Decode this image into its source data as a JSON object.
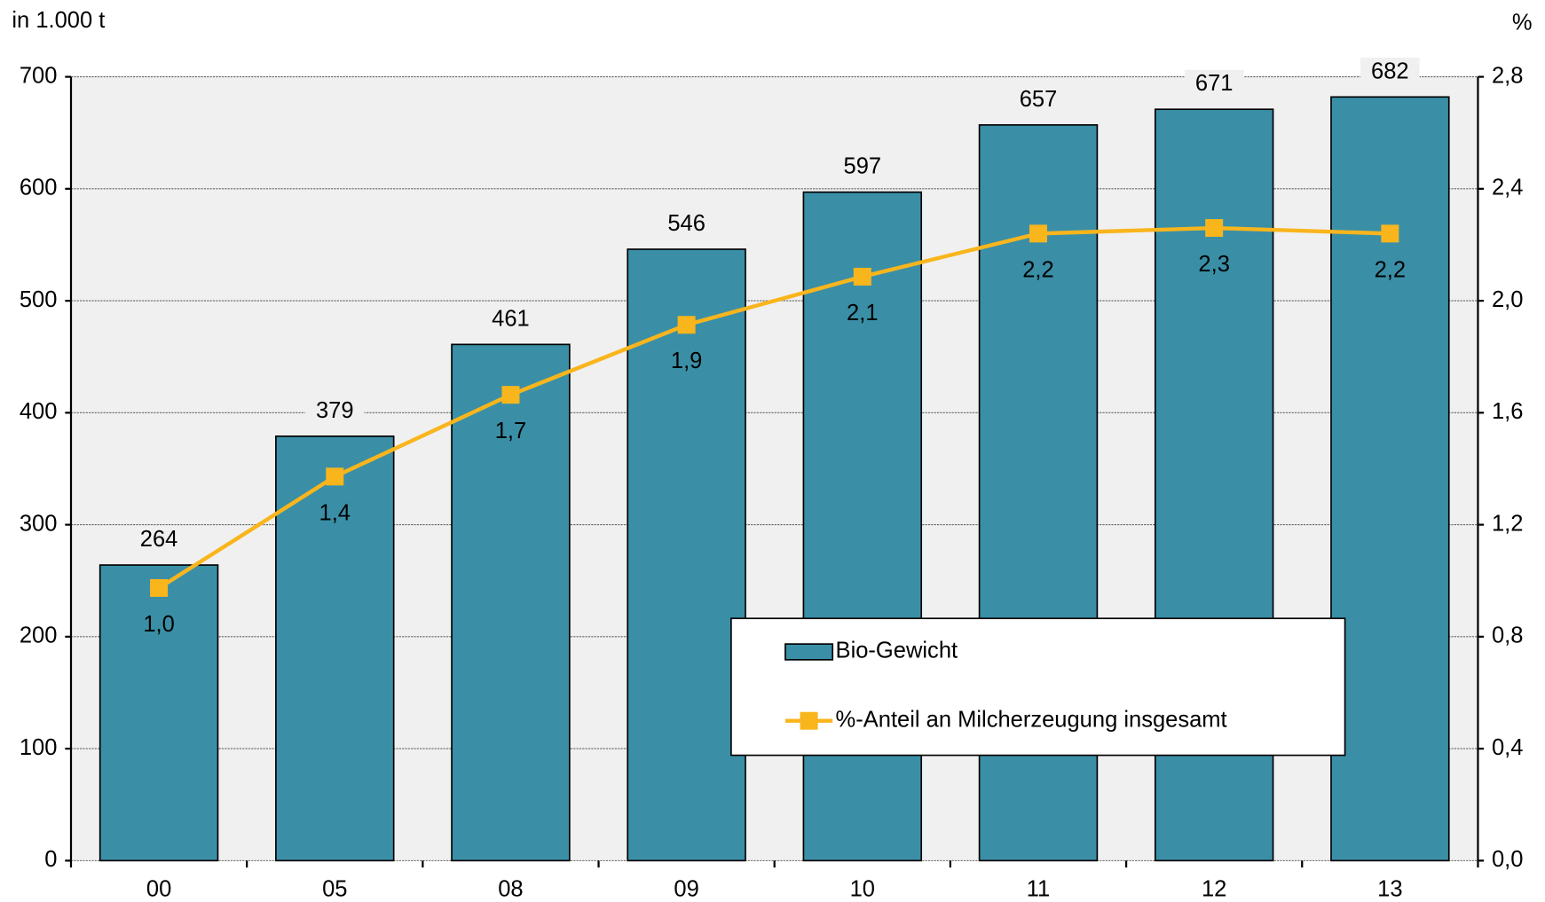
{
  "chart_data": {
    "type": "bar_line",
    "y_label": "in 1.000 t",
    "y2_label": "%",
    "categories": [
      "00",
      "05",
      "08",
      "09",
      "10",
      "11",
      "12",
      "13"
    ],
    "series": [
      {
        "name": "Bio-Gewicht",
        "type": "bar",
        "color": "#3a8fa6",
        "values": [
          264,
          379,
          461,
          546,
          597,
          657,
          671,
          682
        ]
      },
      {
        "name": "%-Anteil an Milcherzeugung insgesamt",
        "type": "line",
        "axis": "y2",
        "color": "#f9b51c",
        "values": [
          0.974,
          1.372,
          1.664,
          1.914,
          2.086,
          2.24,
          2.26,
          2.24
        ],
        "value_labels": [
          "1,0",
          "1,4",
          "1,7",
          "1,9",
          "2,1",
          "2,2",
          "2,3",
          "2,2"
        ]
      }
    ],
    "ylim": [
      0,
      700
    ],
    "yticks": [
      0,
      100,
      200,
      300,
      400,
      500,
      600,
      700
    ],
    "y2lim": [
      0,
      2.8
    ],
    "y2ticks": [
      {
        "value": 0,
        "label": "0,0"
      },
      {
        "value": 0.4,
        "label": "0,4"
      },
      {
        "value": 0.8,
        "label": "0,8"
      },
      {
        "value": 1.2,
        "label": "1,2"
      },
      {
        "value": 1.6,
        "label": "1,6"
      },
      {
        "value": 2.0,
        "label": "2,0"
      },
      {
        "value": 2.4,
        "label": "2,4"
      },
      {
        "value": 2.8,
        "label": "2,8"
      }
    ],
    "grid": true,
    "legend": "lower right"
  }
}
